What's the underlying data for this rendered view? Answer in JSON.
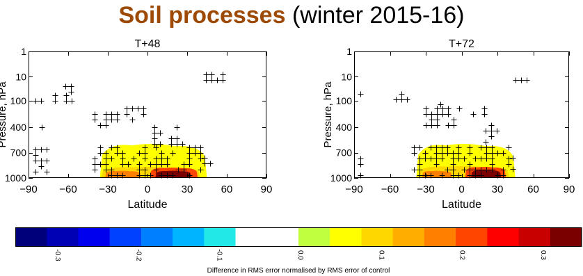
{
  "title": {
    "highlight": "Soil processes",
    "rest": " (winter 2015-16)",
    "highlight_color": "#9c4a06"
  },
  "chart_data": [
    {
      "type": "heatmap",
      "title": "T+48",
      "xlabel": "Latitude",
      "ylabel": "Pressure, hPa",
      "xlim": [
        -90,
        90
      ],
      "xticks": [
        -90,
        -60,
        -30,
        0,
        30,
        60,
        90
      ],
      "yticks": [
        1,
        10,
        100,
        400,
        700,
        1000
      ],
      "y_scale": "pressure (log, inverted)",
      "hatch": "+ marks indicate significant cells",
      "regions": [
        {
          "level": 0.05,
          "lat": [
            -36,
            45
          ],
          "p": [
            560,
            1000
          ]
        },
        {
          "level": 0.1,
          "lat": [
            -35,
            40
          ],
          "p": [
            850,
            1000
          ]
        },
        {
          "level": 0.18,
          "lat": [
            -32,
            -5
          ],
          "p": [
            900,
            1000
          ]
        },
        {
          "level": 0.22,
          "lat": [
            2,
            38
          ],
          "p": [
            860,
            1000
          ]
        },
        {
          "level": 0.32,
          "lat": [
            6,
            33
          ],
          "p": [
            900,
            1000
          ]
        }
      ]
    },
    {
      "type": "heatmap",
      "title": "T+72",
      "xlabel": "Latitude",
      "ylabel": "Pressure, hPa",
      "xlim": [
        -90,
        90
      ],
      "xticks": [
        -90,
        -60,
        -30,
        0,
        30,
        60,
        90
      ],
      "yticks": [
        1,
        10,
        100,
        400,
        700,
        1000
      ],
      "y_scale": "pressure (log, inverted)",
      "hatch": "+ marks indicate significant cells",
      "regions": [
        {
          "level": 0.05,
          "lat": [
            -38,
            45
          ],
          "p": [
            560,
            1000
          ]
        },
        {
          "level": 0.1,
          "lat": [
            -36,
            40
          ],
          "p": [
            840,
            1000
          ]
        },
        {
          "level": 0.18,
          "lat": [
            -33,
            -8
          ],
          "p": [
            900,
            1000
          ]
        },
        {
          "level": 0.22,
          "lat": [
            3,
            37
          ],
          "p": [
            850,
            1000
          ]
        },
        {
          "level": 0.32,
          "lat": [
            8,
            33
          ],
          "p": [
            890,
            1000
          ]
        }
      ]
    }
  ],
  "colorbar": {
    "label": "Difference in RMS error normalised by RMS error of control",
    "range": [
      -0.35,
      0.35
    ],
    "tick_values": [
      -0.3,
      -0.2,
      -0.1,
      0.0,
      0.1,
      0.2,
      0.3
    ],
    "tick_labels": [
      "-0.3",
      "-0.2",
      "-0.1",
      "0.0",
      "0.1",
      "0.2",
      "0.3"
    ],
    "colors": [
      "#00007a",
      "#0000b4",
      "#0000ee",
      "#0040ff",
      "#0080ff",
      "#00b4ff",
      "#22e8e8",
      "#ffffff",
      "#ffffff",
      "#c0ff40",
      "#ffff00",
      "#ffd700",
      "#ffae00",
      "#ff7f00",
      "#ff4500",
      "#ff0000",
      "#c80000",
      "#7a0000"
    ]
  }
}
